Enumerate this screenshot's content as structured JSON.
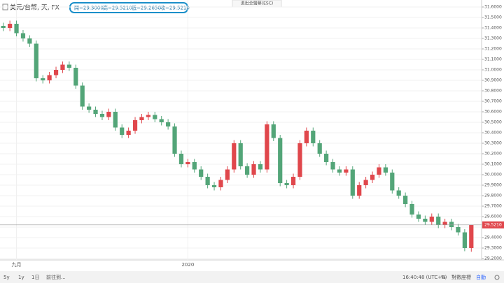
{
  "chart_data": {
    "type": "candlestick",
    "title": "美元/台幣, 天, FX",
    "ohlc_legend": [
      "開=29.3000",
      "高=29.5210",
      "低=29.2650",
      "收=29.5210"
    ],
    "categories": [
      null,
      null,
      "九月",
      null,
      null,
      null,
      null,
      null,
      null,
      null,
      null,
      null,
      null,
      null,
      null,
      null,
      null,
      null,
      null,
      null,
      null,
      null,
      null,
      null,
      null,
      null,
      null,
      null,
      "2020",
      null,
      null,
      null,
      null,
      null,
      null,
      null,
      null,
      null,
      null,
      null,
      null,
      null,
      null,
      null,
      null,
      null,
      null,
      null,
      null,
      null,
      null,
      null,
      null,
      null,
      null,
      null,
      null,
      null,
      null,
      null,
      null,
      null,
      null,
      null,
      null,
      null,
      null,
      null,
      null,
      null,
      null,
      null
    ],
    "open": [
      31.42,
      31.4,
      31.44,
      31.35,
      31.3,
      31.25,
      30.92,
      30.9,
      30.95,
      31.0,
      31.05,
      31.02,
      30.85,
      30.65,
      30.62,
      30.58,
      30.55,
      30.6,
      30.45,
      30.38,
      30.42,
      30.52,
      30.55,
      30.57,
      30.53,
      30.5,
      30.46,
      30.2,
      30.1,
      30.12,
      30.05,
      29.98,
      29.9,
      29.88,
      29.95,
      30.05,
      30.3,
      30.08,
      30.0,
      30.1,
      30.05,
      30.48,
      30.35,
      29.92,
      29.9,
      29.98,
      30.3,
      30.42,
      30.3,
      30.2,
      30.12,
      30.05,
      30.02,
      30.05,
      29.8,
      29.9,
      29.95,
      30.0,
      30.07,
      30.02,
      29.85,
      29.8,
      29.72,
      29.62,
      29.58,
      29.55,
      29.6,
      29.52,
      29.55,
      29.5,
      29.45,
      29.3
    ],
    "high": [
      31.45,
      31.47,
      31.47,
      31.38,
      31.33,
      31.28,
      30.95,
      30.98,
      31.03,
      31.08,
      31.08,
      31.05,
      30.88,
      30.68,
      30.65,
      30.61,
      30.63,
      30.63,
      30.48,
      30.45,
      30.55,
      30.58,
      30.6,
      30.6,
      30.56,
      30.53,
      30.49,
      30.23,
      30.15,
      30.15,
      30.08,
      30.01,
      29.93,
      29.98,
      30.08,
      30.33,
      30.33,
      30.11,
      30.13,
      30.13,
      30.51,
      30.51,
      30.38,
      29.95,
      30.01,
      30.33,
      30.45,
      30.45,
      30.33,
      30.23,
      30.15,
      30.08,
      30.08,
      30.08,
      29.93,
      29.98,
      30.03,
      30.1,
      30.1,
      30.05,
      29.88,
      29.83,
      29.75,
      29.65,
      29.61,
      29.63,
      29.63,
      29.58,
      29.58,
      29.53,
      29.48,
      29.521
    ],
    "low": [
      31.37,
      31.37,
      31.32,
      31.27,
      31.22,
      30.89,
      30.87,
      30.87,
      30.92,
      30.97,
      30.99,
      30.82,
      30.62,
      30.59,
      30.55,
      30.52,
      30.52,
      30.42,
      30.35,
      30.35,
      30.39,
      30.49,
      30.52,
      30.5,
      30.47,
      30.43,
      30.17,
      30.07,
      30.07,
      30.02,
      29.95,
      29.87,
      29.85,
      29.85,
      29.92,
      30.02,
      30.05,
      29.97,
      29.97,
      30.02,
      30.02,
      30.32,
      29.89,
      29.87,
      29.87,
      29.95,
      30.27,
      30.27,
      30.17,
      30.09,
      30.02,
      29.99,
      29.99,
      29.77,
      29.77,
      29.87,
      29.92,
      29.97,
      29.99,
      29.82,
      29.77,
      29.69,
      29.59,
      29.55,
      29.52,
      29.52,
      29.49,
      29.49,
      29.47,
      29.42,
      29.27,
      29.265
    ],
    "close": [
      31.4,
      31.44,
      31.35,
      31.3,
      31.25,
      30.92,
      30.9,
      30.95,
      31.0,
      31.05,
      31.02,
      30.85,
      30.65,
      30.62,
      30.58,
      30.55,
      30.6,
      30.45,
      30.38,
      30.42,
      30.52,
      30.55,
      30.57,
      30.53,
      30.5,
      30.46,
      30.2,
      30.1,
      30.12,
      30.05,
      29.98,
      29.9,
      29.88,
      29.95,
      30.05,
      30.3,
      30.08,
      30.0,
      30.1,
      30.05,
      30.48,
      30.35,
      29.92,
      29.9,
      29.98,
      30.3,
      30.42,
      30.3,
      30.2,
      30.12,
      30.05,
      30.02,
      30.05,
      29.8,
      29.9,
      29.95,
      30.0,
      30.07,
      30.02,
      29.85,
      29.8,
      29.72,
      29.62,
      29.58,
      29.55,
      29.6,
      29.52,
      29.55,
      29.5,
      29.45,
      29.3,
      29.521
    ],
    "up_color": "#e0474c",
    "down_color": "#53a578",
    "last_price": {
      "value": 29.521,
      "label": "29.5210"
    },
    "ylim": [
      29.2,
      31.6
    ],
    "yticks": [
      {
        "value": 31.6,
        "label": "31.6000"
      },
      {
        "value": 31.5,
        "label": "31.5000"
      },
      {
        "value": 31.4,
        "label": "31.4000"
      },
      {
        "value": 31.3,
        "label": "31.3000"
      },
      {
        "value": 31.2,
        "label": "31.2000"
      },
      {
        "value": 31.1,
        "label": "31.1000"
      },
      {
        "value": 31.0,
        "label": "31.0000"
      },
      {
        "value": 30.9,
        "label": "30.9000"
      },
      {
        "value": 30.8,
        "label": "30.8000"
      },
      {
        "value": 30.7,
        "label": "30.7000"
      },
      {
        "value": 30.6,
        "label": "30.6000"
      },
      {
        "value": 30.5,
        "label": "30.5000"
      },
      {
        "value": 30.4,
        "label": "30.4000"
      },
      {
        "value": 30.3,
        "label": "30.3000"
      },
      {
        "value": 30.2,
        "label": "30.2000"
      },
      {
        "value": 30.1,
        "label": "30.1000"
      },
      {
        "value": 30.0,
        "label": "30.0000"
      },
      {
        "value": 29.9,
        "label": "29.9000"
      },
      {
        "value": 29.8,
        "label": "29.8000"
      },
      {
        "value": 29.7,
        "label": "29.7000"
      },
      {
        "value": 29.6,
        "label": "29.6000"
      },
      {
        "value": 29.5,
        "label": "29.5000"
      },
      {
        "value": 29.4,
        "label": "29.4000"
      },
      {
        "value": 29.3,
        "label": "29.3000"
      },
      {
        "value": 29.2,
        "label": "29.2000"
      }
    ],
    "grid": true
  },
  "fullscreen_exit": "退出全螢幕(ESC)",
  "toolbar": {
    "left": [
      "5y",
      "1y",
      "1日",
      "前往到..."
    ],
    "time": "16:40:48 (UTC+8)",
    "right": [
      "%",
      "對數座標",
      "自動"
    ]
  }
}
